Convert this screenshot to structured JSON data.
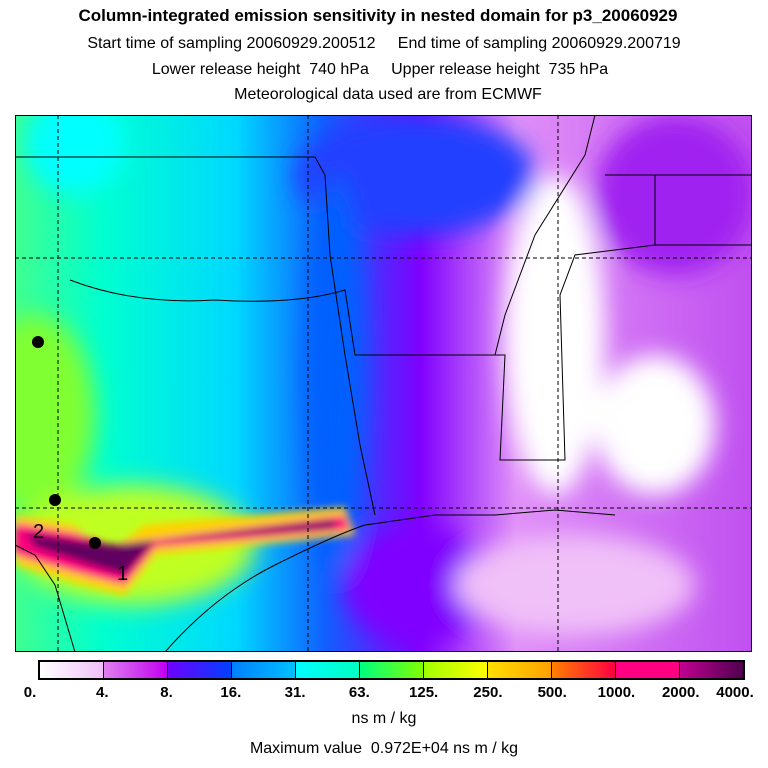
{
  "header": {
    "title": "Column-integrated emission sensitivity in nested domain for p3_20060929",
    "start_time": "Start time of sampling 20060929.200512",
    "end_time": "End time of sampling 20060929.200719",
    "lower_release": "Lower release height  740 hPa",
    "upper_release": "Upper release height  735 hPa",
    "met_data": "Meteorological data used are from ECMWF"
  },
  "map": {
    "markers": [
      {
        "label": "1"
      },
      {
        "label": "2"
      }
    ]
  },
  "colorbar": {
    "ticks": [
      "0.",
      "4.",
      "8.",
      "16.",
      "31.",
      "63.",
      "125.",
      "250.",
      "500.",
      "1000.",
      "2000.",
      "4000."
    ],
    "segments": [
      [
        "#ffffff",
        "#f0c0f8"
      ],
      [
        "#e080f0",
        "#c000f0"
      ],
      [
        "#7000ff",
        "#0040ff"
      ],
      [
        "#0080ff",
        "#00c0ff"
      ],
      [
        "#00ffff",
        "#00ffc0"
      ],
      [
        "#00ff80",
        "#80ff00"
      ],
      [
        "#a0ff00",
        "#ffff00"
      ],
      [
        "#ffe000",
        "#ffa000"
      ],
      [
        "#ff8000",
        "#ff0040"
      ],
      [
        "#ff0080",
        "#ff0080"
      ],
      [
        "#c00090",
        "#500050"
      ]
    ],
    "unit": "ns m / kg"
  },
  "footer": {
    "max_value": "Maximum value  0.972E+04 ns m / kg"
  }
}
